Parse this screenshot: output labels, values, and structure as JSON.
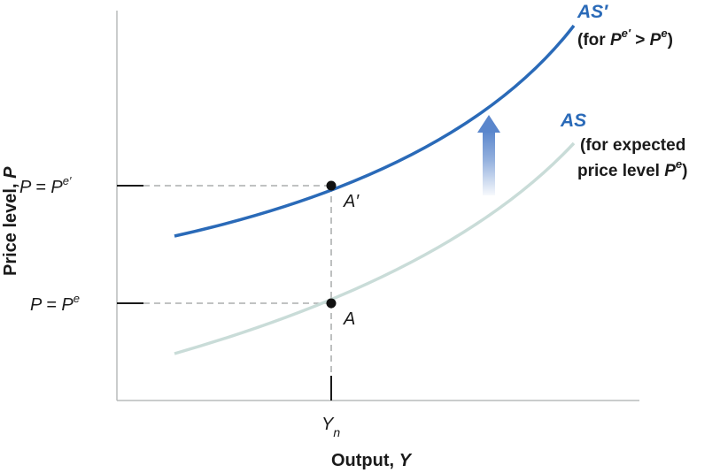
{
  "diagram": {
    "axes": {
      "y_label_prefix": "Price level, ",
      "y_label_var": "P",
      "x_label_prefix": "Output, ",
      "x_label_var": "Y",
      "x_tick_main": "Y",
      "x_tick_sub": "n"
    },
    "levels": {
      "upper_prefix": "P = P",
      "upper_sup": "e′",
      "lower_prefix": "P = P",
      "lower_sup": "e"
    },
    "points": {
      "upper": "A′",
      "lower": "A"
    },
    "curves": {
      "shifted": {
        "name": "AS′",
        "note_open": "(for ",
        "note_p1": "P",
        "note_p1_sup": "e′",
        "note_gt": " > ",
        "note_p2": "P",
        "note_p2_sup": "e",
        "note_close": ")",
        "color": "#2a6ab8"
      },
      "original": {
        "name": "AS",
        "note_line1": "(for expected",
        "note_line2_prefix": "price level ",
        "note_line2_var": "P",
        "note_line2_sup": "e",
        "note_line2_close": ")",
        "color": "#c9dcd8"
      }
    },
    "arrow_color": "#5a86cc"
  }
}
